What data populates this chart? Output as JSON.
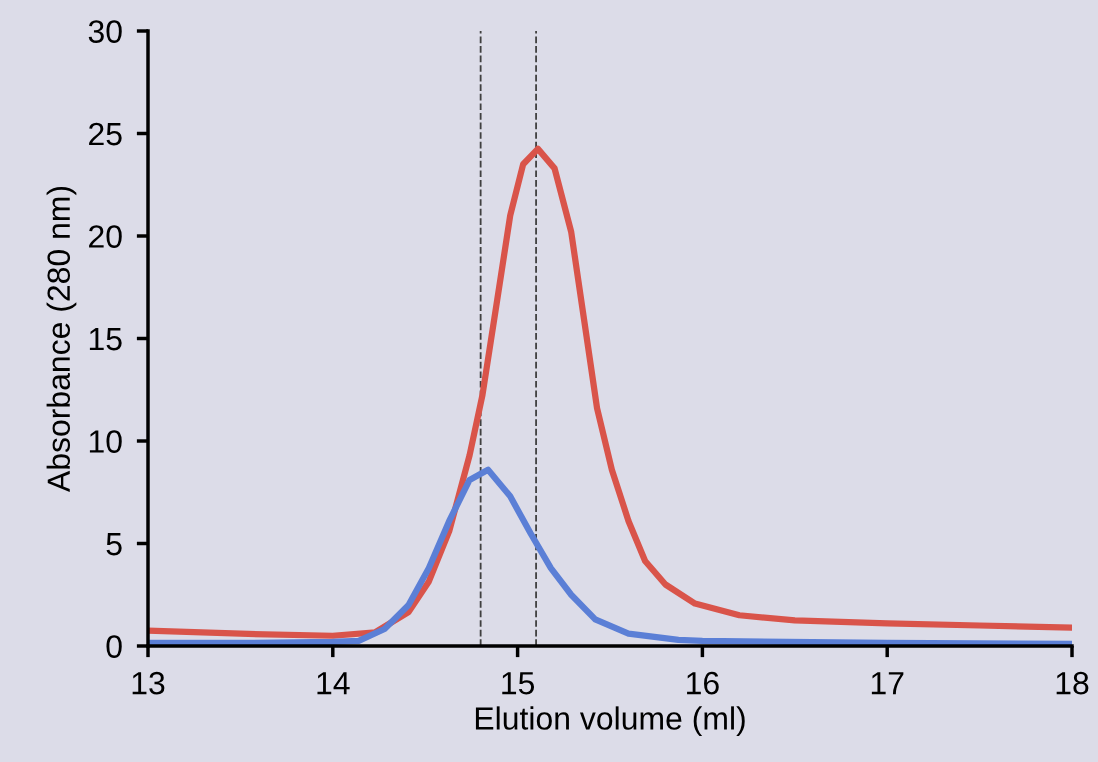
{
  "chart_data": {
    "type": "line",
    "xlabel": "Elution volume (ml)",
    "ylabel": "Absorbance (280 nm)",
    "xlim": [
      13,
      18
    ],
    "xticks": [
      13,
      14,
      15,
      16,
      17,
      18
    ],
    "ylim": [
      0,
      30
    ],
    "yticks": [
      0,
      5,
      10,
      15,
      20,
      25,
      30
    ],
    "grid": false,
    "legend": false,
    "marker": "none",
    "line_style": "solid",
    "series": [
      {
        "color": "#d9544a",
        "x": [
          13,
          13.5,
          14,
          14.23,
          14.41,
          14.52,
          14.63,
          14.74,
          14.81,
          14.89,
          14.96,
          15.03,
          15.11,
          15.2,
          15.29,
          15.36,
          15.43,
          15.51,
          15.6,
          15.69,
          15.8,
          15.96,
          16.2,
          16.5,
          17,
          17.5,
          18
        ],
        "values": [
          0.75,
          0.6,
          0.5,
          0.67,
          1.66,
          3.15,
          5.6,
          9.3,
          12.25,
          16.9,
          21.0,
          23.5,
          24.25,
          23.3,
          20.2,
          15.9,
          11.6,
          8.6,
          6.1,
          4.15,
          3.0,
          2.07,
          1.5,
          1.25,
          1.1,
          1.0,
          0.9
        ]
      },
      {
        "color": "#5b7fd6",
        "x": [
          13,
          13.5,
          14,
          14.14,
          14.28,
          14.41,
          14.52,
          14.63,
          14.74,
          14.84,
          14.96,
          15.07,
          15.18,
          15.29,
          15.42,
          15.6,
          15.87,
          16,
          17,
          18
        ],
        "values": [
          0.15,
          0.15,
          0.2,
          0.25,
          0.83,
          2.0,
          3.8,
          6.1,
          8.1,
          8.6,
          7.3,
          5.5,
          3.8,
          2.5,
          1.3,
          0.6,
          0.3,
          0.25,
          0.15,
          0.1
        ]
      }
    ],
    "ref_lines": [
      {
        "axis": "x",
        "value": 14.8,
        "color": "#404040",
        "line_style": "dashed"
      },
      {
        "axis": "x",
        "value": 15.1,
        "color": "#404040",
        "line_style": "dashed"
      }
    ]
  }
}
